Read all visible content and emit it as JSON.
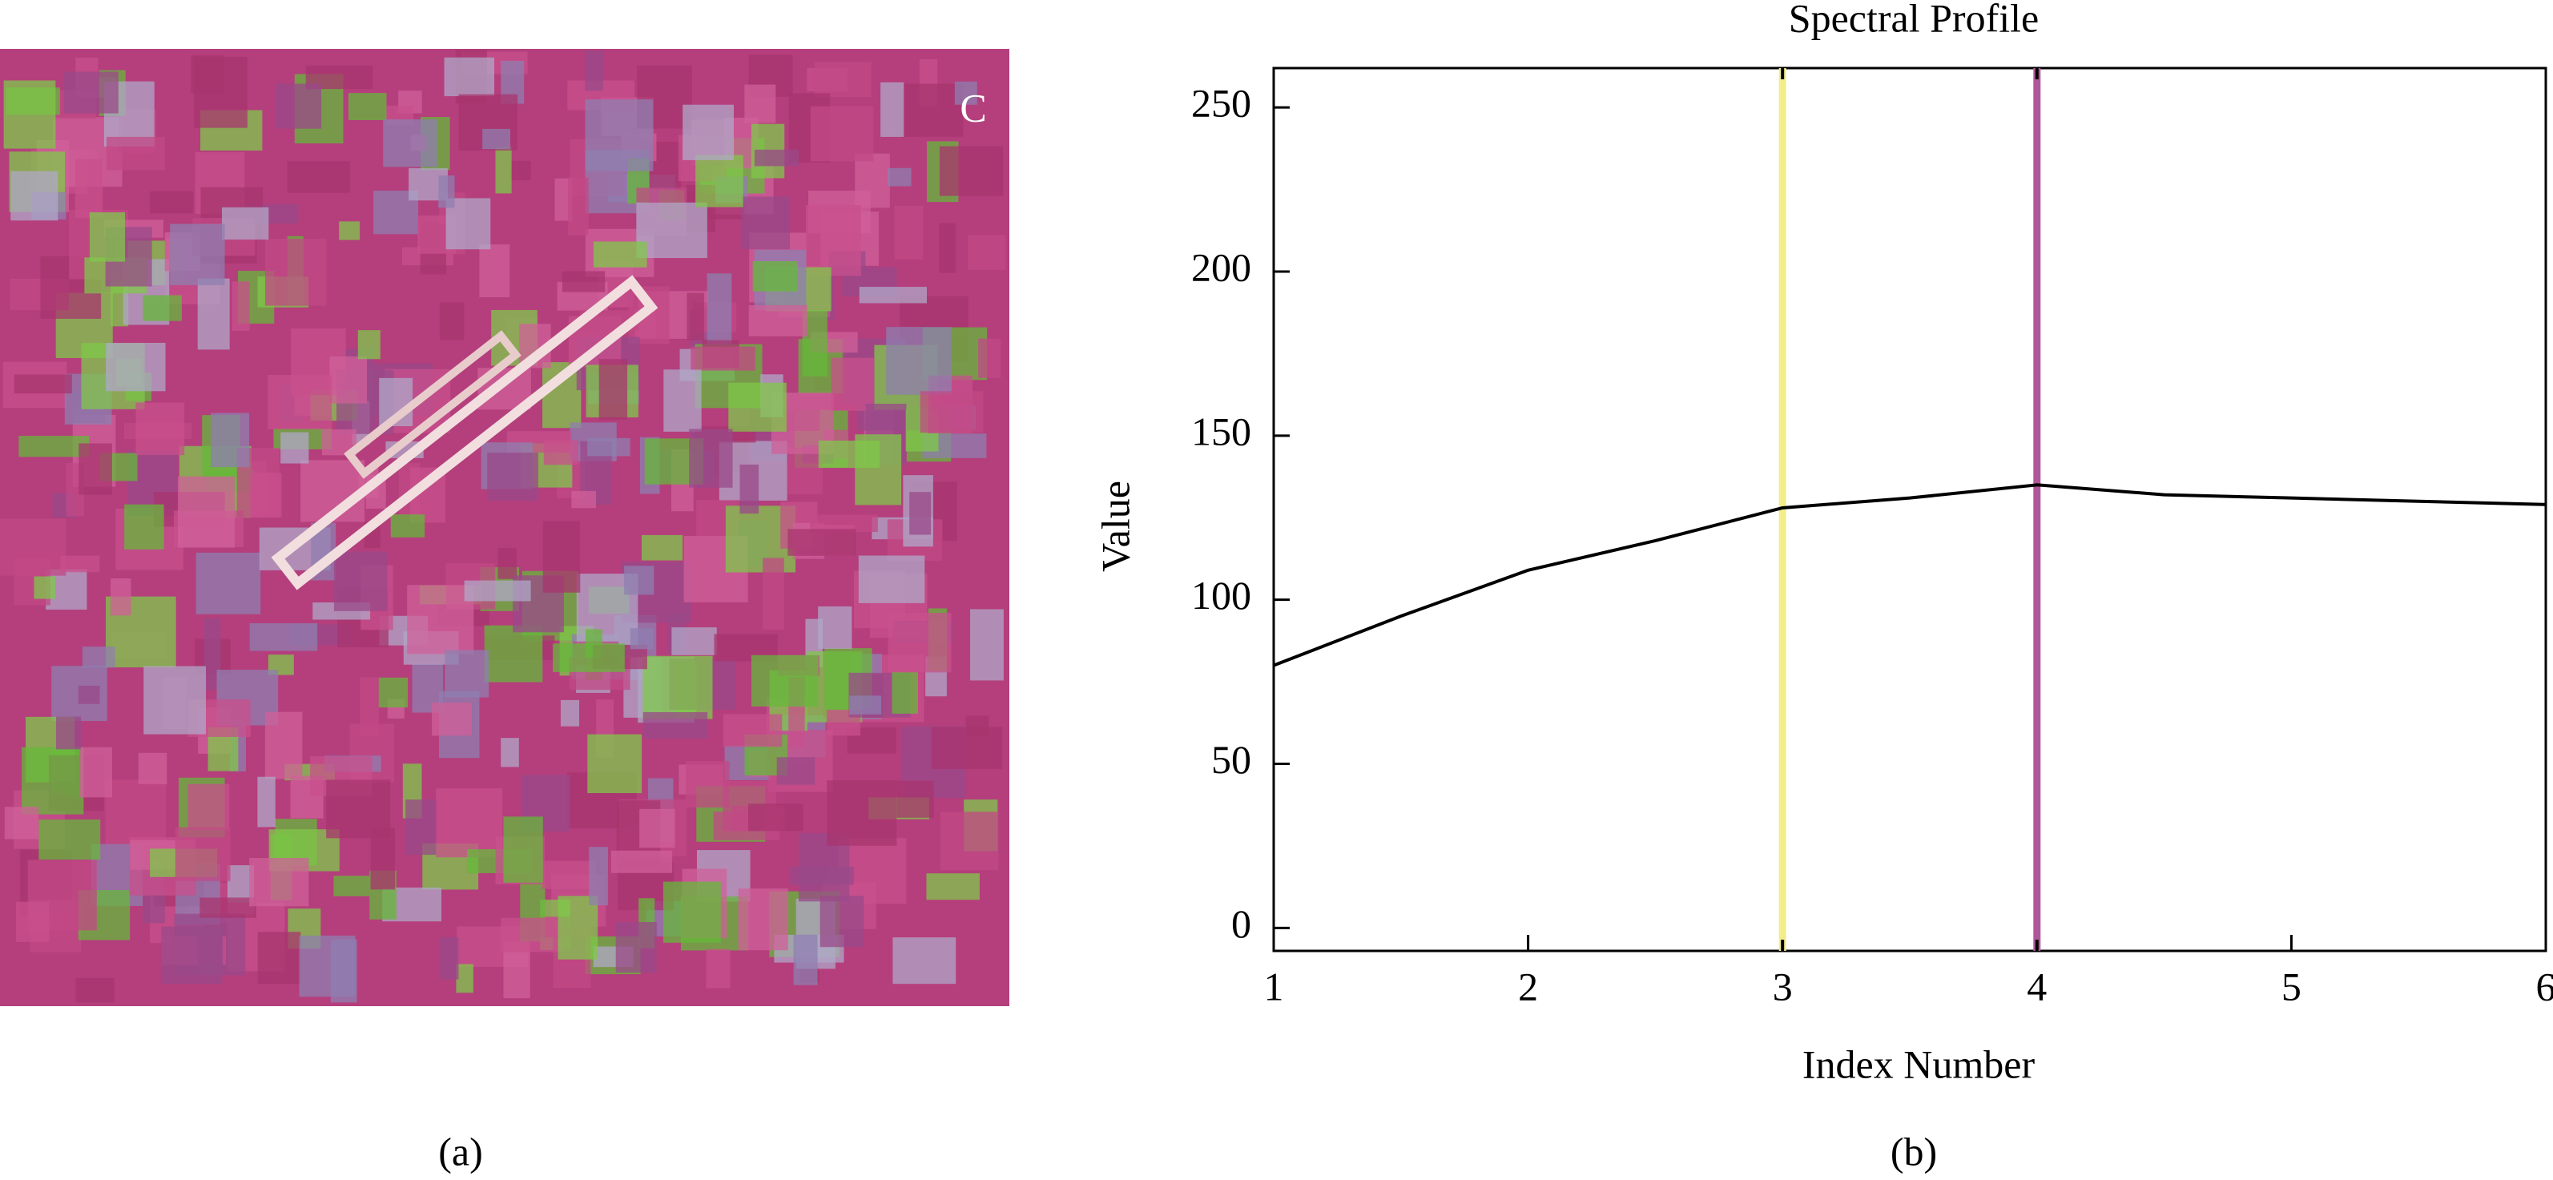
{
  "panel_a": {
    "letter": "C",
    "caption": "(a)"
  },
  "chart_data": {
    "type": "line",
    "title": "Spectral Profile",
    "caption": "(b)",
    "x_label": "Index Number",
    "y_label": "Value",
    "x": [
      1,
      1.5,
      2,
      2.5,
      3,
      3.5,
      4,
      4.5,
      5,
      5.5,
      6
    ],
    "series": [
      {
        "color": "#000000",
        "values": [
          80,
          95,
          109,
          118,
          128,
          131,
          135,
          132,
          131,
          130,
          129
        ]
      }
    ],
    "markers": [
      {
        "x": 3,
        "color": "#f2ee8a"
      },
      {
        "x": 4,
        "color": "#b0579a"
      }
    ],
    "xlim": [
      1,
      6
    ],
    "xticks": [
      1,
      2,
      3,
      4,
      5,
      6
    ],
    "ylim": [
      -7,
      262
    ],
    "yticks": [
      0,
      50,
      100,
      150,
      200,
      250
    ]
  }
}
